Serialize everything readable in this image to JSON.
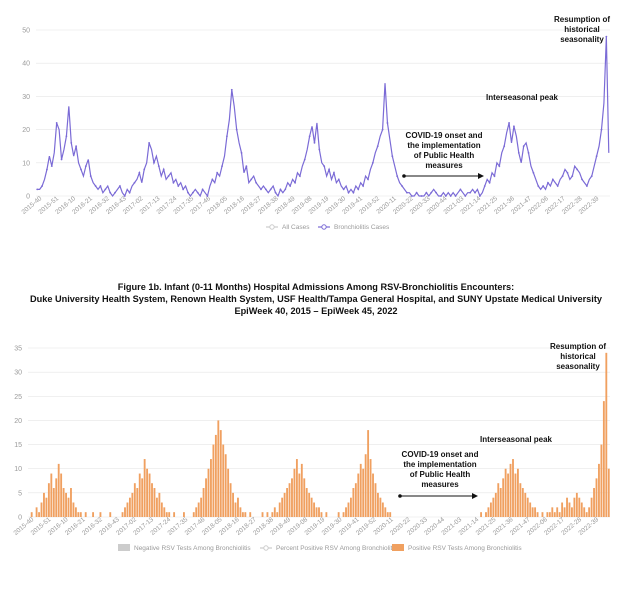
{
  "figure_title": {
    "line1": "Figure 1b. Infant (0-11 Months) Hospital Admissions Among RSV-Bronchiolitis Encounters:",
    "line2": "Duke University Health System, Renown Health System, USF Health/Tampa General Hospital, and SUNY Upstate Medical University",
    "line3": "EpiWeek 40, 2015 – EpiWeek 45, 2022"
  },
  "chart_data": [
    {
      "type": "line",
      "title": "",
      "xlabel": "",
      "ylabel": "",
      "ylim": [
        0,
        50
      ],
      "yticks": [
        0,
        10,
        20,
        30,
        40,
        50
      ],
      "grid": true,
      "legend_position": "bottom",
      "x_tick_labels": [
        "2015-40",
        "2015-51",
        "2016-10",
        "2016-21",
        "2016-32",
        "2016-43",
        "2017-02",
        "2017-13",
        "2017-24",
        "2017-35",
        "2017-46",
        "2018-05",
        "2018-16",
        "2018-27",
        "2018-38",
        "2018-49",
        "2019-08",
        "2019-19",
        "2019-30",
        "2019-41",
        "2019-52",
        "2020-11",
        "2020-22",
        "2020-33",
        "2020-44",
        "2021-03",
        "2021-14",
        "2021-25",
        "2021-36",
        "2021-47",
        "2022-06",
        "2022-17",
        "2022-28",
        "2022-39"
      ],
      "legend": [
        "All Cases",
        "Bronchiolitis Cases"
      ],
      "series": [
        {
          "name": "All Cases",
          "color": "#cccccc",
          "values": []
        },
        {
          "name": "Bronchiolitis Cases",
          "color": "#7b6bd6",
          "values": [
            2,
            2,
            3,
            5,
            8,
            12,
            9,
            13,
            22,
            20,
            11,
            14,
            18,
            27,
            16,
            12,
            15,
            10,
            8,
            6,
            9,
            11,
            6,
            4,
            3,
            2,
            3,
            1,
            2,
            3,
            1,
            0,
            1,
            2,
            3,
            1,
            0,
            2,
            1,
            3,
            4,
            5,
            7,
            4,
            8,
            10,
            16,
            14,
            10,
            12,
            9,
            6,
            8,
            5,
            6,
            7,
            4,
            5,
            3,
            4,
            2,
            3,
            1,
            0,
            1,
            2,
            1,
            0,
            2,
            1,
            0,
            3,
            5,
            4,
            7,
            6,
            9,
            12,
            18,
            23,
            32,
            27,
            20,
            16,
            13,
            7,
            9,
            4,
            5,
            6,
            4,
            3,
            2,
            3,
            2,
            1,
            2,
            3,
            1,
            0,
            2,
            1,
            2,
            4,
            3,
            5,
            4,
            7,
            6,
            9,
            11,
            14,
            18,
            21,
            16,
            22,
            14,
            10,
            9,
            6,
            8,
            5,
            7,
            4,
            5,
            3,
            2,
            3,
            1,
            2,
            1,
            3,
            2,
            4,
            3,
            6,
            5,
            8,
            10,
            13,
            15,
            18,
            20,
            34,
            22,
            17,
            12,
            9,
            6,
            4,
            3,
            2,
            1,
            1,
            0,
            0,
            1,
            0,
            0,
            0,
            1,
            0,
            1,
            2,
            1,
            0,
            0,
            1,
            0,
            1,
            0,
            1,
            0,
            1,
            2,
            1,
            0,
            1,
            1,
            2,
            1,
            2,
            0,
            1,
            3,
            5,
            4,
            7,
            6,
            10,
            9,
            13,
            15,
            19,
            22,
            16,
            21,
            18,
            13,
            10,
            15,
            16,
            13,
            9,
            7,
            5,
            3,
            2,
            3,
            2,
            4,
            3,
            5,
            4,
            3,
            5,
            6,
            8,
            7,
            5,
            6,
            9,
            8,
            7,
            5,
            4,
            3,
            5,
            6,
            9,
            12,
            15,
            20,
            28,
            48,
            13
          ]
        }
      ],
      "annotations": [
        {
          "id": "resumption",
          "lines": [
            "Resumption of",
            "historical",
            "seasonality"
          ]
        },
        {
          "id": "interseasonal",
          "lines": [
            "Interseasonal peak"
          ]
        },
        {
          "id": "covid",
          "lines": [
            "COVID-19 onset and",
            "the implementation",
            "of Public Health",
            "measures"
          ]
        }
      ]
    },
    {
      "type": "bar",
      "title": "",
      "xlabel": "",
      "ylabel": "",
      "ylim": [
        0,
        35
      ],
      "yticks": [
        0,
        5,
        10,
        15,
        20,
        25,
        30,
        35
      ],
      "grid": true,
      "legend_position": "bottom",
      "x_tick_labels": [
        "2015-40",
        "2015-51",
        "2016-10",
        "2016-21",
        "2016-32",
        "2016-43",
        "2017-02",
        "2017-13",
        "2017-24",
        "2017-35",
        "2017-46",
        "2018-05",
        "2018-16",
        "2018-27",
        "2018-38",
        "2018-49",
        "2019-08",
        "2019-19",
        "2019-30",
        "2019-41",
        "2019-52",
        "2020-11",
        "2020-22",
        "2020-33",
        "2020-44",
        "2021-03",
        "2021-14",
        "2021-25",
        "2021-36",
        "2021-47",
        "2022-06",
        "2022-17",
        "2022-28",
        "2022-39"
      ],
      "legend": [
        "Negative RSV Tests Among Bronchiolitis",
        "Percent Positive RSV Among Bronchiolitis",
        "Positive RSV Tests Among Bronchiolitis"
      ],
      "series": [
        {
          "name": "Negative RSV Tests Among Bronchiolitis",
          "color": "#cccccc",
          "values": []
        },
        {
          "name": "Percent Positive RSV Among Bronchiolitis",
          "color": "#cccccc",
          "values": []
        },
        {
          "name": "Positive RSV Tests Among Bronchiolitis",
          "color": "#f0a060",
          "values": [
            0,
            1,
            0,
            2,
            1,
            3,
            5,
            4,
            7,
            9,
            6,
            8,
            11,
            9,
            6,
            5,
            4,
            6,
            3,
            2,
            1,
            1,
            0,
            1,
            0,
            0,
            1,
            0,
            0,
            1,
            0,
            0,
            0,
            1,
            0,
            0,
            0,
            0,
            1,
            2,
            3,
            4,
            5,
            7,
            6,
            9,
            8,
            12,
            10,
            9,
            7,
            6,
            4,
            5,
            3,
            2,
            1,
            1,
            0,
            1,
            0,
            0,
            0,
            1,
            0,
            0,
            0,
            1,
            2,
            3,
            4,
            6,
            8,
            10,
            12,
            15,
            17,
            20,
            18,
            15,
            13,
            10,
            7,
            5,
            3,
            4,
            2,
            1,
            1,
            0,
            1,
            0,
            0,
            0,
            0,
            1,
            0,
            1,
            0,
            1,
            2,
            1,
            3,
            4,
            5,
            6,
            7,
            8,
            10,
            12,
            9,
            11,
            8,
            6,
            5,
            4,
            3,
            2,
            2,
            1,
            0,
            1,
            0,
            0,
            0,
            0,
            1,
            0,
            1,
            2,
            3,
            4,
            6,
            7,
            9,
            11,
            10,
            13,
            18,
            12,
            9,
            7,
            5,
            4,
            3,
            2,
            1,
            1,
            0,
            0,
            0,
            0,
            0,
            0,
            0,
            0,
            0,
            0,
            0,
            0,
            0,
            0,
            0,
            0,
            0,
            0,
            0,
            0,
            0,
            0,
            0,
            0,
            0,
            0,
            0,
            0,
            0,
            0,
            0,
            0,
            0,
            0,
            0,
            0,
            1,
            0,
            1,
            2,
            3,
            4,
            5,
            7,
            6,
            8,
            10,
            9,
            11,
            12,
            9,
            10,
            7,
            6,
            5,
            4,
            3,
            2,
            2,
            1,
            0,
            1,
            0,
            1,
            1,
            2,
            1,
            2,
            1,
            3,
            2,
            4,
            3,
            2,
            4,
            5,
            4,
            3,
            2,
            1,
            2,
            4,
            6,
            8,
            11,
            15,
            24,
            34,
            10
          ]
        }
      ],
      "annotations": [
        {
          "id": "resumption",
          "lines": [
            "Resumption of",
            "historical",
            "seasonality"
          ]
        },
        {
          "id": "interseasonal",
          "lines": [
            "Interseasonal peak"
          ]
        },
        {
          "id": "covid",
          "lines": [
            "COVID-19 onset and",
            "the implementation",
            "of Public Health",
            "measures"
          ]
        }
      ]
    }
  ]
}
